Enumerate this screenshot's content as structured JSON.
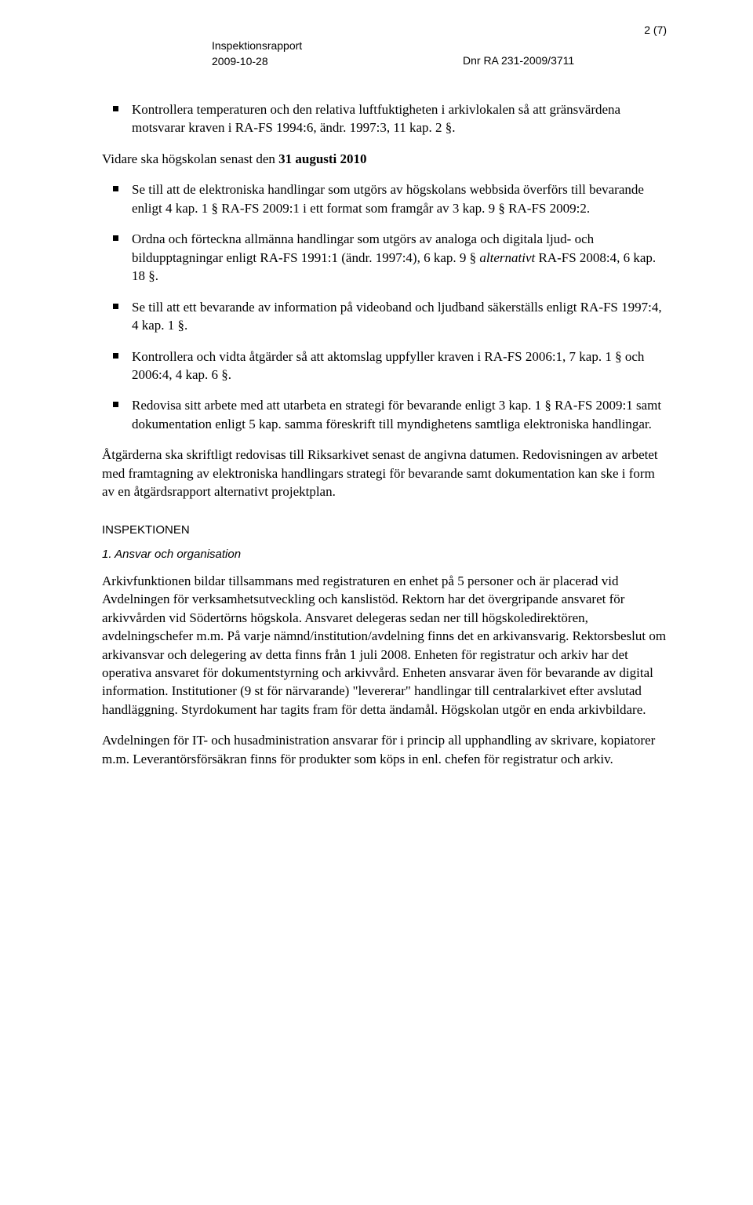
{
  "header": {
    "title": "Inspektionsrapport",
    "date": "2009-10-28",
    "dnr": "Dnr RA 231-2009/3711",
    "page": "2 (7)"
  },
  "intro_bullet": "Kontrollera temperaturen och den relativa luftfuktigheten i arkivlokalen så att gränsvärdena motsvarar kraven i RA-FS 1994:6, ändr. 1997:3, 11 kap. 2 §.",
  "vidare_prefix": "Vidare ska högskolan senast den ",
  "vidare_date": "31 augusti 2010",
  "bullets2": [
    "Se till att de elektroniska handlingar som utgörs av högskolans webbsida överförs till bevarande enligt 4 kap. 1 § RA-FS 2009:1 i ett format som framgår av 3 kap. 9 § RA-FS 2009:2.",
    "Se till att ett bevarande av information på videoband och ljudband säkerställs enligt RA-FS 1997:4, 4 kap. 1 §.",
    "Kontrollera och vidta åtgärder så att aktomslag uppfyller kraven i RA-FS 2006:1, 7 kap. 1 § och 2006:4, 4 kap. 6 §.",
    "Redovisa sitt arbete med att utarbeta en strategi för bevarande enligt 3 kap. 1 § RA-FS 2009:1 samt dokumentation enligt 5 kap. samma föreskrift till myndighetens samtliga elektroniska handlingar."
  ],
  "bullet_ordna_pre": "Ordna och förteckna allmänna handlingar som utgörs av analoga och digitala ljud- och bildupptagningar enligt RA-FS 1991:1 (ändr. 1997:4), 6 kap. 9 § ",
  "bullet_ordna_alt": "alternativt",
  "bullet_ordna_post": " RA-FS 2008:4, 6 kap. 18 §.",
  "atgarder": "Åtgärderna ska skriftligt redovisas till Riksarkivet senast de angivna datumen. Redovisningen av arbetet med framtagning av elektroniska handlingars strategi för bevarande samt dokumentation kan ske i form av en åtgärdsrapport alternativt projektplan.",
  "section": {
    "head": "INSPEKTIONEN",
    "sub": "1. Ansvar och organisation"
  },
  "para1": "Arkivfunktionen bildar tillsammans med registraturen en enhet på 5 personer och är placerad vid Avdelningen för verksamhetsutveckling och kanslistöd. Rektorn har det övergripande ansvaret för arkivvården vid Södertörns högskola. Ansvaret delegeras sedan ner till högskoledirektören, avdelningschefer m.m. På varje nämnd/institution/avdelning finns det en arkivansvarig. Rektorsbeslut om arkivansvar och delegering av detta finns från 1 juli 2008. Enheten för registratur och arkiv har det operativa ansvaret för dokumentstyrning och arkivvård. Enheten ansvarar även för bevarande av digital information. Institutioner (9 st för närvarande) \"levererar\" handlingar till centralarkivet efter avslutad handläggning. Styrdokument har tagits fram för detta ändamål. Högskolan utgör en enda arkivbildare.",
  "para2": "Avdelningen för IT- och husadministration ansvarar för i princip all upphandling av skrivare, kopiatorer m.m. Leverantörsförsäkran finns för produkter som köps in enl. chefen för registratur och arkiv."
}
